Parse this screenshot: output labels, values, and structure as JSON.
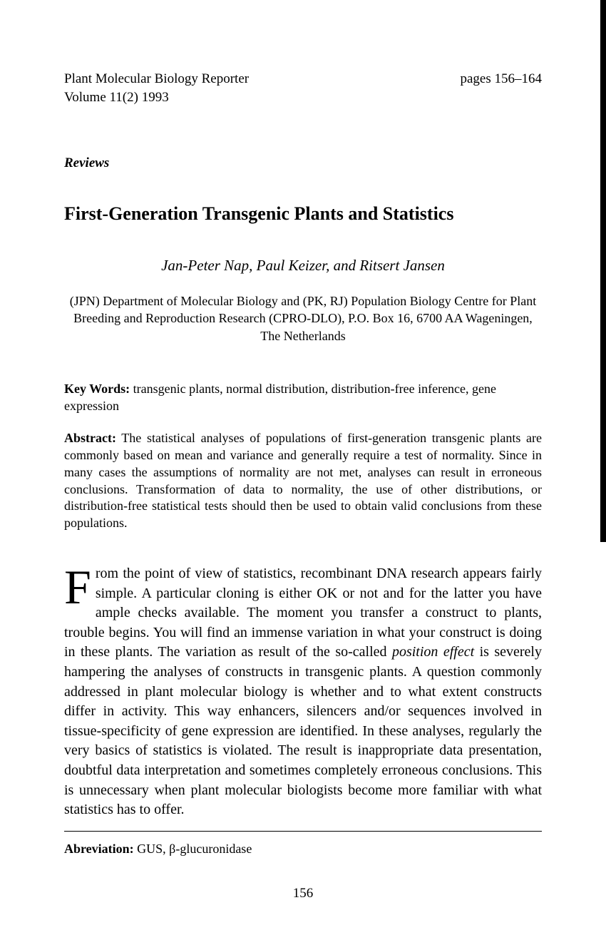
{
  "header": {
    "journal": "Plant Molecular Biology Reporter",
    "pages": "pages 156–164",
    "volume": "Volume 11(2) 1993"
  },
  "section_label": "Reviews",
  "title": "First-Generation Transgenic Plants and Statistics",
  "authors": "Jan-Peter Nap, Paul Keizer, and Ritsert Jansen",
  "affiliation": "(JPN) Department of Molecular Biology and (PK, RJ) Population Biology Centre for Plant Breeding and Reproduction Research (CPRO-DLO), P.O. Box 16, 6700 AA Wageningen, The Netherlands",
  "keywords": {
    "label": "Key Words:",
    "text": " transgenic plants, normal distribution, distribution-free inference, gene expression"
  },
  "abstract": {
    "label": "Abstract:",
    "text": " The statistical analyses of populations of first-generation transgenic plants are commonly based on mean and variance and generally require a test of normality. Since in many cases the assumptions of normality are not met, analyses can result in erroneous conclusions. Transformation of data to normality, the use of other distributions, or distribution-free statistical tests should then be used to obtain valid conclusions from these populations."
  },
  "body": {
    "drop_cap": "F",
    "part1": "rom the point of view of statistics, recombinant DNA research appears fairly simple. A particular cloning is either OK or not and for the latter you have ample checks available. The moment you transfer a construct to plants, trouble begins. You will find an immense variation in what your construct is doing in these plants. The variation as result of the so-called ",
    "italic1": "position effect",
    "part2": " is severely hampering the analyses of constructs in transgenic plants. A question commonly addressed in plant molecular biology is whether and to what extent constructs differ in activity. This way enhancers, silencers and/or sequences involved in tissue-specificity of gene expression are identified. In these analyses, regularly the very basics of statistics is violated. The result is inappropriate data presentation, doubtful data interpretation and sometimes completely erroneous conclusions. This is unnecessary when plant molecular biologists become more familiar with what statistics has to offer."
  },
  "abbreviation": {
    "label": "Abreviation:",
    "text": " GUS, β-glucuronidase"
  },
  "page_number": "156"
}
